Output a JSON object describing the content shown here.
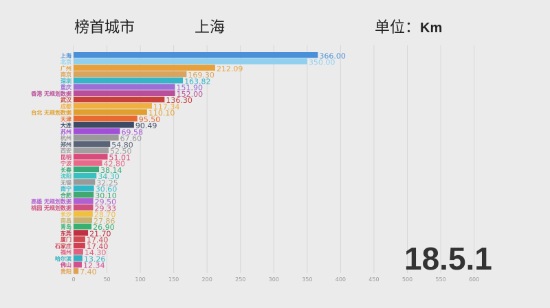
{
  "header": {
    "leader_label": "榜首城市",
    "leader_city": "上海",
    "unit_label": "单位：",
    "unit_value": "Km"
  },
  "date": "18.5.1",
  "chart_data": {
    "type": "bar",
    "orientation": "horizontal",
    "xlim": [
      0,
      600
    ],
    "xticks": [
      0,
      50,
      100,
      150,
      200,
      250,
      300,
      350,
      400,
      450,
      500,
      550,
      600
    ],
    "grid": true,
    "categories": [
      "上海",
      "北京",
      "广州",
      "南京",
      "深圳",
      "重庆",
      "香港 无规划数据",
      "武汉",
      "成都",
      "台北 无规划数据",
      "天津",
      "大连",
      "苏州",
      "杭州",
      "郑州",
      "西安",
      "昆明",
      "宁波",
      "长春",
      "沈阳",
      "无锡",
      "南宁",
      "合肥",
      "高雄 无规划数据",
      "桃园 无规划数据",
      "长沙",
      "南昌",
      "青岛",
      "东莞",
      "厦门",
      "石家庄",
      "福州",
      "哈尔滨",
      "佛山",
      "贵阳"
    ],
    "values": [
      366.0,
      350.0,
      212.09,
      169.3,
      163.82,
      151.9,
      152.0,
      136.3,
      117.34,
      110.1,
      95.5,
      90.49,
      69.58,
      67.6,
      54.8,
      52.5,
      51.01,
      42.8,
      38.14,
      34.3,
      32.25,
      30.6,
      30.1,
      29.5,
      29.33,
      28.7,
      27.86,
      26.9,
      21.7,
      17.4,
      17.4,
      14.3,
      13.26,
      12.34,
      7.4
    ],
    "colors": [
      "#4a90d9",
      "#8fd0ee",
      "#e8a13a",
      "#d9a45e",
      "#36b5c9",
      "#9b6fd6",
      "#b94e9a",
      "#c9403a",
      "#f0b040",
      "#e0a030",
      "#e86a30",
      "#3e4a66",
      "#a24fd8",
      "#9a9a9a",
      "#5a6478",
      "#a0a0a0",
      "#d94b7a",
      "#e86a8a",
      "#3aaa7a",
      "#38c0c0",
      "#9a9a9a",
      "#30b8c8",
      "#40a870",
      "#b060d0",
      "#d05080",
      "#f0c040",
      "#c8b070",
      "#38b070",
      "#c03040",
      "#d04850",
      "#d04050",
      "#e06080",
      "#30b0c0",
      "#d05090",
      "#e0a050"
    ]
  }
}
